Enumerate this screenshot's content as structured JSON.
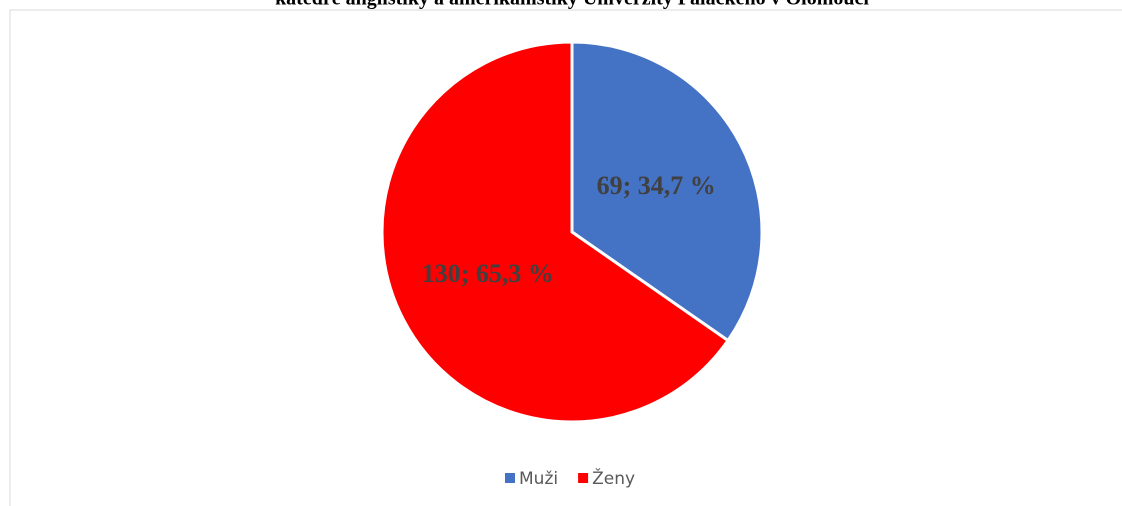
{
  "chart_data": {
    "type": "pie",
    "title": "katedře anglistiky a amerikanistiky Univerzity Palackého v Olomouci",
    "categories": [
      "Muži",
      "Ženy"
    ],
    "values": [
      69,
      130
    ],
    "value_labels": [
      "69; 34,7 %",
      "130; 65,3 %"
    ],
    "colors": [
      "#4472c4",
      "#ff0000"
    ],
    "legend": "bottom"
  }
}
